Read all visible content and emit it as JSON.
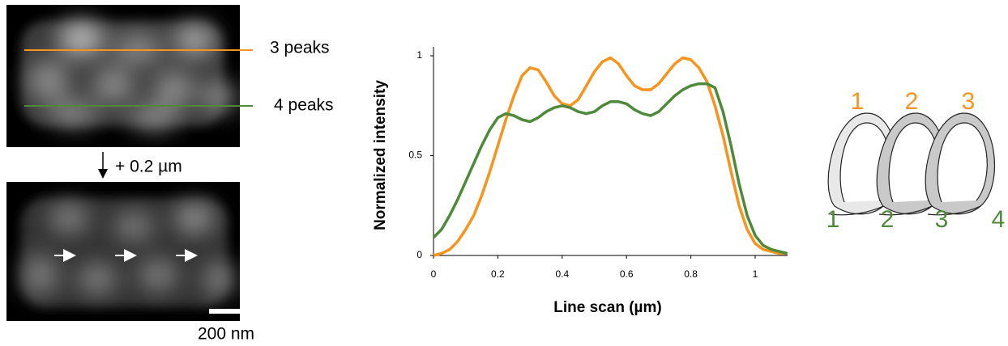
{
  "image_panel": {
    "lines": [
      {
        "label": "3 peaks",
        "color": "#f7941d"
      },
      {
        "label": "4 peaks",
        "color": "#4e8a3a"
      }
    ],
    "shift": "+ 0.2 µm",
    "scale_bar": "200 nm"
  },
  "chart_data": {
    "type": "line",
    "x_label": "Line scan (µm)",
    "y_label": "Normalized intensity",
    "x": [
      0,
      0.025,
      0.05,
      0.075,
      0.1,
      0.125,
      0.15,
      0.175,
      0.2,
      0.225,
      0.25,
      0.275,
      0.3,
      0.325,
      0.35,
      0.375,
      0.4,
      0.425,
      0.45,
      0.475,
      0.5,
      0.525,
      0.55,
      0.575,
      0.6,
      0.625,
      0.65,
      0.675,
      0.7,
      0.725,
      0.75,
      0.775,
      0.8,
      0.825,
      0.85,
      0.875,
      0.9,
      0.925,
      0.95,
      0.975,
      1.0,
      1.025,
      1.05,
      1.075,
      1.1
    ],
    "series": [
      {
        "color": "#f7941d",
        "values": [
          0.0,
          0.01,
          0.03,
          0.07,
          0.13,
          0.2,
          0.3,
          0.42,
          0.55,
          0.68,
          0.8,
          0.9,
          0.94,
          0.93,
          0.87,
          0.8,
          0.76,
          0.75,
          0.78,
          0.85,
          0.92,
          0.97,
          0.99,
          0.96,
          0.9,
          0.85,
          0.83,
          0.83,
          0.86,
          0.91,
          0.96,
          0.99,
          0.98,
          0.94,
          0.87,
          0.75,
          0.6,
          0.42,
          0.25,
          0.13,
          0.06,
          0.03,
          0.02,
          0.01,
          0.01
        ]
      },
      {
        "color": "#4e8a3a",
        "values": [
          0.09,
          0.13,
          0.2,
          0.28,
          0.37,
          0.46,
          0.55,
          0.63,
          0.69,
          0.71,
          0.7,
          0.68,
          0.67,
          0.69,
          0.72,
          0.74,
          0.75,
          0.74,
          0.72,
          0.71,
          0.72,
          0.75,
          0.77,
          0.77,
          0.76,
          0.73,
          0.71,
          0.7,
          0.72,
          0.76,
          0.8,
          0.83,
          0.85,
          0.86,
          0.86,
          0.84,
          0.72,
          0.55,
          0.36,
          0.2,
          0.1,
          0.05,
          0.03,
          0.02,
          0.01
        ]
      }
    ],
    "xlim": [
      0,
      1.1
    ],
    "ylim": [
      0,
      1.05
    ],
    "xticks": [
      0,
      0.2,
      0.4,
      0.6,
      0.8,
      1
    ],
    "yticks": [
      0,
      0.5,
      1
    ]
  },
  "diagram": {
    "top_labels": [
      "1",
      "2",
      "3"
    ],
    "bottom_labels": [
      "1",
      "2",
      "3",
      "4"
    ]
  }
}
